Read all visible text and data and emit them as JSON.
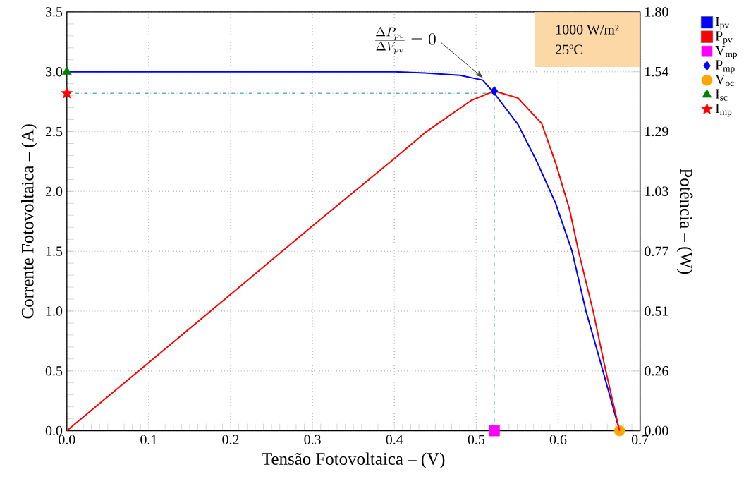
{
  "chart_data": {
    "type": "line",
    "xlabel": "Tensão Fotovoltaica – (V)",
    "ylabel": "Corrente Fotovoltaica – (A)",
    "y2label": "Potência – (W)",
    "xlim": [
      0,
      0.7
    ],
    "ylim": [
      0,
      3.5
    ],
    "y2lim": [
      0,
      1.8
    ],
    "xticks": [
      {
        "value": 0,
        "label": "0.0"
      },
      0.1,
      0.2,
      0.3,
      0.4,
      0.5,
      0.6,
      0.7
    ],
    "yticks": [
      {
        "value": 0,
        "label": "0.0"
      },
      0.5,
      {
        "value": 1,
        "label": "1.0"
      },
      1.5,
      {
        "value": 2,
        "label": "2.0"
      },
      2.5,
      {
        "value": 3,
        "label": "3.0"
      },
      3.5
    ],
    "y2ticks": [
      {
        "value": 0,
        "label": "0.00"
      },
      {
        "value": 0.257,
        "label": "0.26"
      },
      {
        "value": 0.514,
        "label": "0.51"
      },
      {
        "value": 0.771,
        "label": "0.77"
      },
      {
        "value": 1.029,
        "label": "1.03"
      },
      {
        "value": 1.286,
        "label": "1.29"
      },
      {
        "value": 1.543,
        "label": "1.54"
      },
      {
        "value": 1.8,
        "label": "1.80"
      }
    ],
    "grid": true,
    "legend": "right",
    "series": [
      {
        "name": "I$_{pv}$",
        "color": "#0000ff",
        "marker": "none",
        "x": [
          0,
          0.1,
          0.2,
          0.3,
          0.4,
          0.437,
          0.48,
          0.508,
          0.522,
          0.551,
          0.574,
          0.597,
          0.617,
          0.634,
          0.651,
          0.675
        ],
        "values": [
          3.0,
          3.0,
          3.0,
          3.0,
          3.0,
          2.99,
          2.97,
          2.93,
          2.82,
          2.56,
          2.25,
          1.9,
          1.5,
          1.0,
          0.59,
          0
        ]
      },
      {
        "name": "P$_{pv}$",
        "axis": "y2",
        "color": "#ff0000",
        "marker": "none",
        "x": [
          0,
          0.1,
          0.2,
          0.3,
          0.4,
          0.437,
          0.494,
          0.522,
          0.551,
          0.58,
          0.597,
          0.614,
          0.625,
          0.643,
          0.658,
          0.675
        ],
        "values": [
          0,
          0.293,
          0.586,
          0.88,
          1.17,
          1.28,
          1.42,
          1.46,
          1.43,
          1.32,
          1.15,
          0.95,
          0.77,
          0.51,
          0.26,
          0
        ]
      },
      {
        "name": "V$_{mp}$",
        "type": "scatter",
        "color": "#ff00ff",
        "marker": "square",
        "x": [
          0.522
        ],
        "values": [
          0
        ]
      },
      {
        "name": "P$_{mp}$",
        "type": "scatter",
        "axis": "y2",
        "color": "#0000ff",
        "marker": "diamond",
        "x": [
          0.522
        ],
        "values": [
          1.46
        ]
      },
      {
        "name": "V$_{oc}$",
        "type": "scatter",
        "color": "#ffa500",
        "marker": "circle",
        "x": [
          0.675
        ],
        "values": [
          0
        ]
      },
      {
        "name": "I$_{sc}$",
        "type": "scatter",
        "color": "#008000",
        "marker": "triangle",
        "x": [
          0
        ],
        "values": [
          3.0
        ]
      },
      {
        "name": "I$_{mp}$",
        "type": "scatter",
        "color": "#ff0000",
        "marker": "star",
        "x": [
          0
        ],
        "values": [
          2.82
        ]
      }
    ],
    "ref_lines": [
      {
        "axis": "x",
        "value": 0.522,
        "color": "#5fb8b0",
        "line_style": "dashdot"
      },
      {
        "axis": "y",
        "value": 2.82,
        "color": "#5fb8b0",
        "line_style": "dashdot"
      }
    ],
    "annotations": [
      {
        "text": "\\frac{\\Delta P_{pv}}{\\Delta V_{pv}} = 0",
        "x": 0.508,
        "y": 2.95
      },
      "1000 W/m²",
      "25ºC"
    ]
  }
}
